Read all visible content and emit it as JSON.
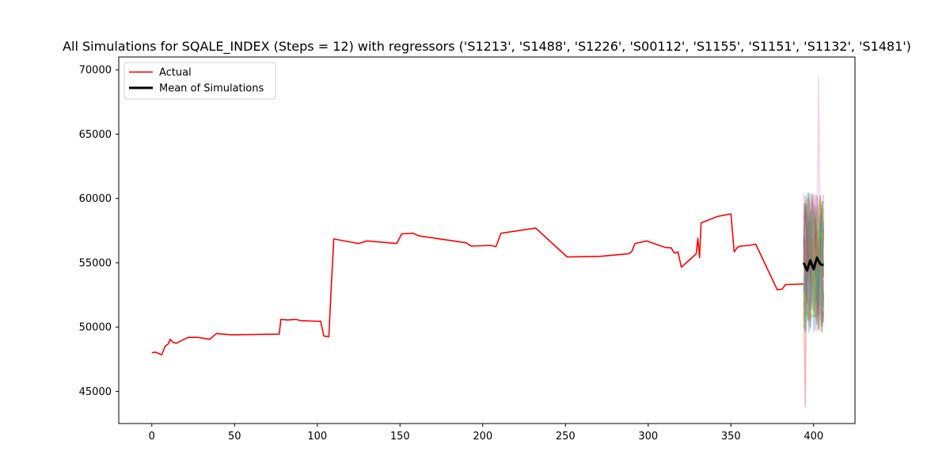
{
  "chart_data": {
    "type": "line",
    "title": "All Simulations for SQALE_INDEX (Steps = 12) with regressors ('S1213', 'S1488', 'S1226', 'S00112', 'S1155', 'S1151', 'S1132', 'S1481')",
    "xlabel": "",
    "ylabel": "",
    "xlim": [
      -20,
      425
    ],
    "ylim": [
      42500,
      71000
    ],
    "x_ticks": [
      0,
      50,
      100,
      150,
      200,
      250,
      300,
      350,
      400
    ],
    "y_ticks": [
      45000,
      50000,
      55000,
      60000,
      65000,
      70000
    ],
    "x_tick_labels": [
      "0",
      "50",
      "100",
      "150",
      "200",
      "250",
      "300",
      "350",
      "400"
    ],
    "y_tick_labels": [
      "45000",
      "50000",
      "55000",
      "60000",
      "65000",
      "70000"
    ],
    "grid": false,
    "legend_position": "top-left",
    "legend": [
      {
        "label": "Actual",
        "color": "#ff0000"
      },
      {
        "label": "Mean of Simulations",
        "color": "#000000"
      }
    ],
    "series": [
      {
        "name": "Actual",
        "color": "#ff0000",
        "points": [
          [
            0,
            48000
          ],
          [
            2,
            48050
          ],
          [
            4,
            47950
          ],
          [
            6,
            47850
          ],
          [
            8,
            48500
          ],
          [
            10,
            48700
          ],
          [
            11,
            49050
          ],
          [
            13,
            48800
          ],
          [
            15,
            48750
          ],
          [
            18,
            48950
          ],
          [
            22,
            49200
          ],
          [
            28,
            49200
          ],
          [
            35,
            49050
          ],
          [
            39,
            49500
          ],
          [
            48,
            49400
          ],
          [
            77,
            49450
          ],
          [
            78,
            50600
          ],
          [
            82,
            50550
          ],
          [
            87,
            50600
          ],
          [
            90,
            50500
          ],
          [
            100,
            50450
          ],
          [
            102,
            50450
          ],
          [
            104,
            49300
          ],
          [
            107,
            49250
          ],
          [
            108,
            52000
          ],
          [
            109,
            54500
          ],
          [
            110,
            56850
          ],
          [
            125,
            56500
          ],
          [
            130,
            56700
          ],
          [
            148,
            56500
          ],
          [
            151,
            57250
          ],
          [
            158,
            57300
          ],
          [
            161,
            57100
          ],
          [
            190,
            56550
          ],
          [
            193,
            56300
          ],
          [
            205,
            56350
          ],
          [
            208,
            56250
          ],
          [
            211,
            57300
          ],
          [
            232,
            57700
          ],
          [
            251,
            55450
          ],
          [
            271,
            55500
          ],
          [
            288,
            55700
          ],
          [
            290,
            55850
          ],
          [
            292,
            56500
          ],
          [
            299,
            56700
          ],
          [
            310,
            56200
          ],
          [
            314,
            56150
          ],
          [
            315,
            55900
          ],
          [
            316,
            55750
          ],
          [
            318,
            55850
          ],
          [
            320,
            54650
          ],
          [
            329,
            55700
          ],
          [
            330,
            56900
          ],
          [
            331,
            55400
          ],
          [
            332,
            58100
          ],
          [
            342,
            58600
          ],
          [
            350,
            58800
          ],
          [
            352,
            55850
          ],
          [
            354,
            56200
          ],
          [
            356,
            56300
          ],
          [
            361,
            56350
          ],
          [
            365,
            56450
          ],
          [
            378,
            52900
          ],
          [
            381,
            52950
          ],
          [
            383,
            53300
          ],
          [
            394,
            53350
          ]
        ]
      },
      {
        "name": "Mean of Simulations",
        "color": "#000000",
        "points": [
          [
            394,
            55000
          ],
          [
            396,
            54400
          ],
          [
            398,
            55200
          ],
          [
            400,
            54500
          ],
          [
            402,
            55400
          ],
          [
            404,
            54900
          ],
          [
            406,
            54800
          ]
        ]
      }
    ],
    "simulations": {
      "count": 30,
      "x_start": 394,
      "x_end": 406,
      "colors": [
        "#1f77b4",
        "#ff7f0e",
        "#2ca02c",
        "#d62728",
        "#9467bd",
        "#8c564b",
        "#e377c2",
        "#7f7f7f",
        "#bcbd22",
        "#17becf"
      ],
      "min": 43800,
      "max": 69500
    }
  }
}
